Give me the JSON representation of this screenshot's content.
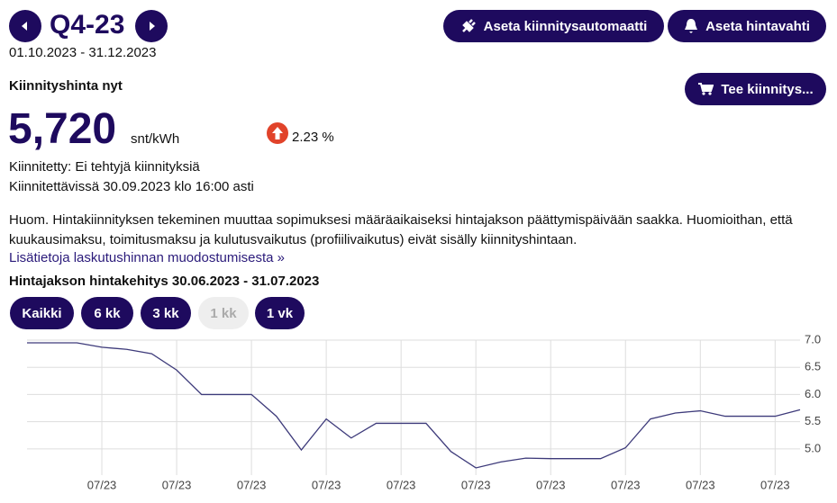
{
  "header": {
    "period": "Q4-23",
    "dates": "01.10.2023 - 31.12.2023"
  },
  "buttons": {
    "auto": "Aseta kiinnitysautomaatti",
    "alert": "Aseta hintavahti",
    "fix": "Tee kiinnitys..."
  },
  "price": {
    "label": "Kiinnityshinta nyt",
    "value": "5,720",
    "unit": "snt/kWh",
    "change": "2.23 %"
  },
  "status": [
    "Kiinnitetty: Ei tehtyjä kiinnityksiä",
    "Kiinnitettävissä 30.09.2023 klo 16:00 asti"
  ],
  "notice": "Huom. Hintakiinnityksen tekeminen muuttaa sopimuksesi määräaikaiseksi hintajakson päättymispäivään saakka. Huomioithan, että kuukausimaksu, toimitusmaksu ja kulutusvaikutus (profiilivaikutus) eivät sisälly kiinnityshintaan.",
  "link": "Lisätietoja laskutushinnan muodostumisesta »",
  "chart_data": {
    "type": "line",
    "title": "Hintajakson hintakehitys 30.06.2023 - 31.07.2023",
    "ranges": [
      "Kaikki",
      "6 kk",
      "3 kk",
      "1 kk",
      "1 vk"
    ],
    "categories": [
      null,
      null,
      null,
      "07/23",
      null,
      null,
      "07/23",
      null,
      null,
      "07/23",
      null,
      null,
      "07/23",
      null,
      null,
      "07/23",
      null,
      null,
      "07/23",
      null,
      null,
      "07/23",
      null,
      null,
      "07/23",
      null,
      null,
      "07/23",
      null,
      null,
      "07/23",
      null
    ],
    "values": [
      6.95,
      6.95,
      6.95,
      6.87,
      6.83,
      6.75,
      6.45,
      6.0,
      6.0,
      6.0,
      5.6,
      4.98,
      5.55,
      5.2,
      5.47,
      5.47,
      5.47,
      4.95,
      4.65,
      4.76,
      4.83,
      4.82,
      4.82,
      4.82,
      5.02,
      5.55,
      5.66,
      5.7,
      5.6,
      5.6,
      5.6,
      5.72
    ],
    "color": "#3d3a7a",
    "ylim": [
      4.6,
      7.0
    ],
    "yticks": [
      {
        "value": 5,
        "label": "5.0"
      },
      {
        "value": 5.5,
        "label": "5.5"
      },
      {
        "value": 6,
        "label": "6.0"
      },
      {
        "value": 6.5,
        "label": "6.5"
      },
      {
        "value": 7,
        "label": "7.0"
      }
    ],
    "grid": true
  }
}
